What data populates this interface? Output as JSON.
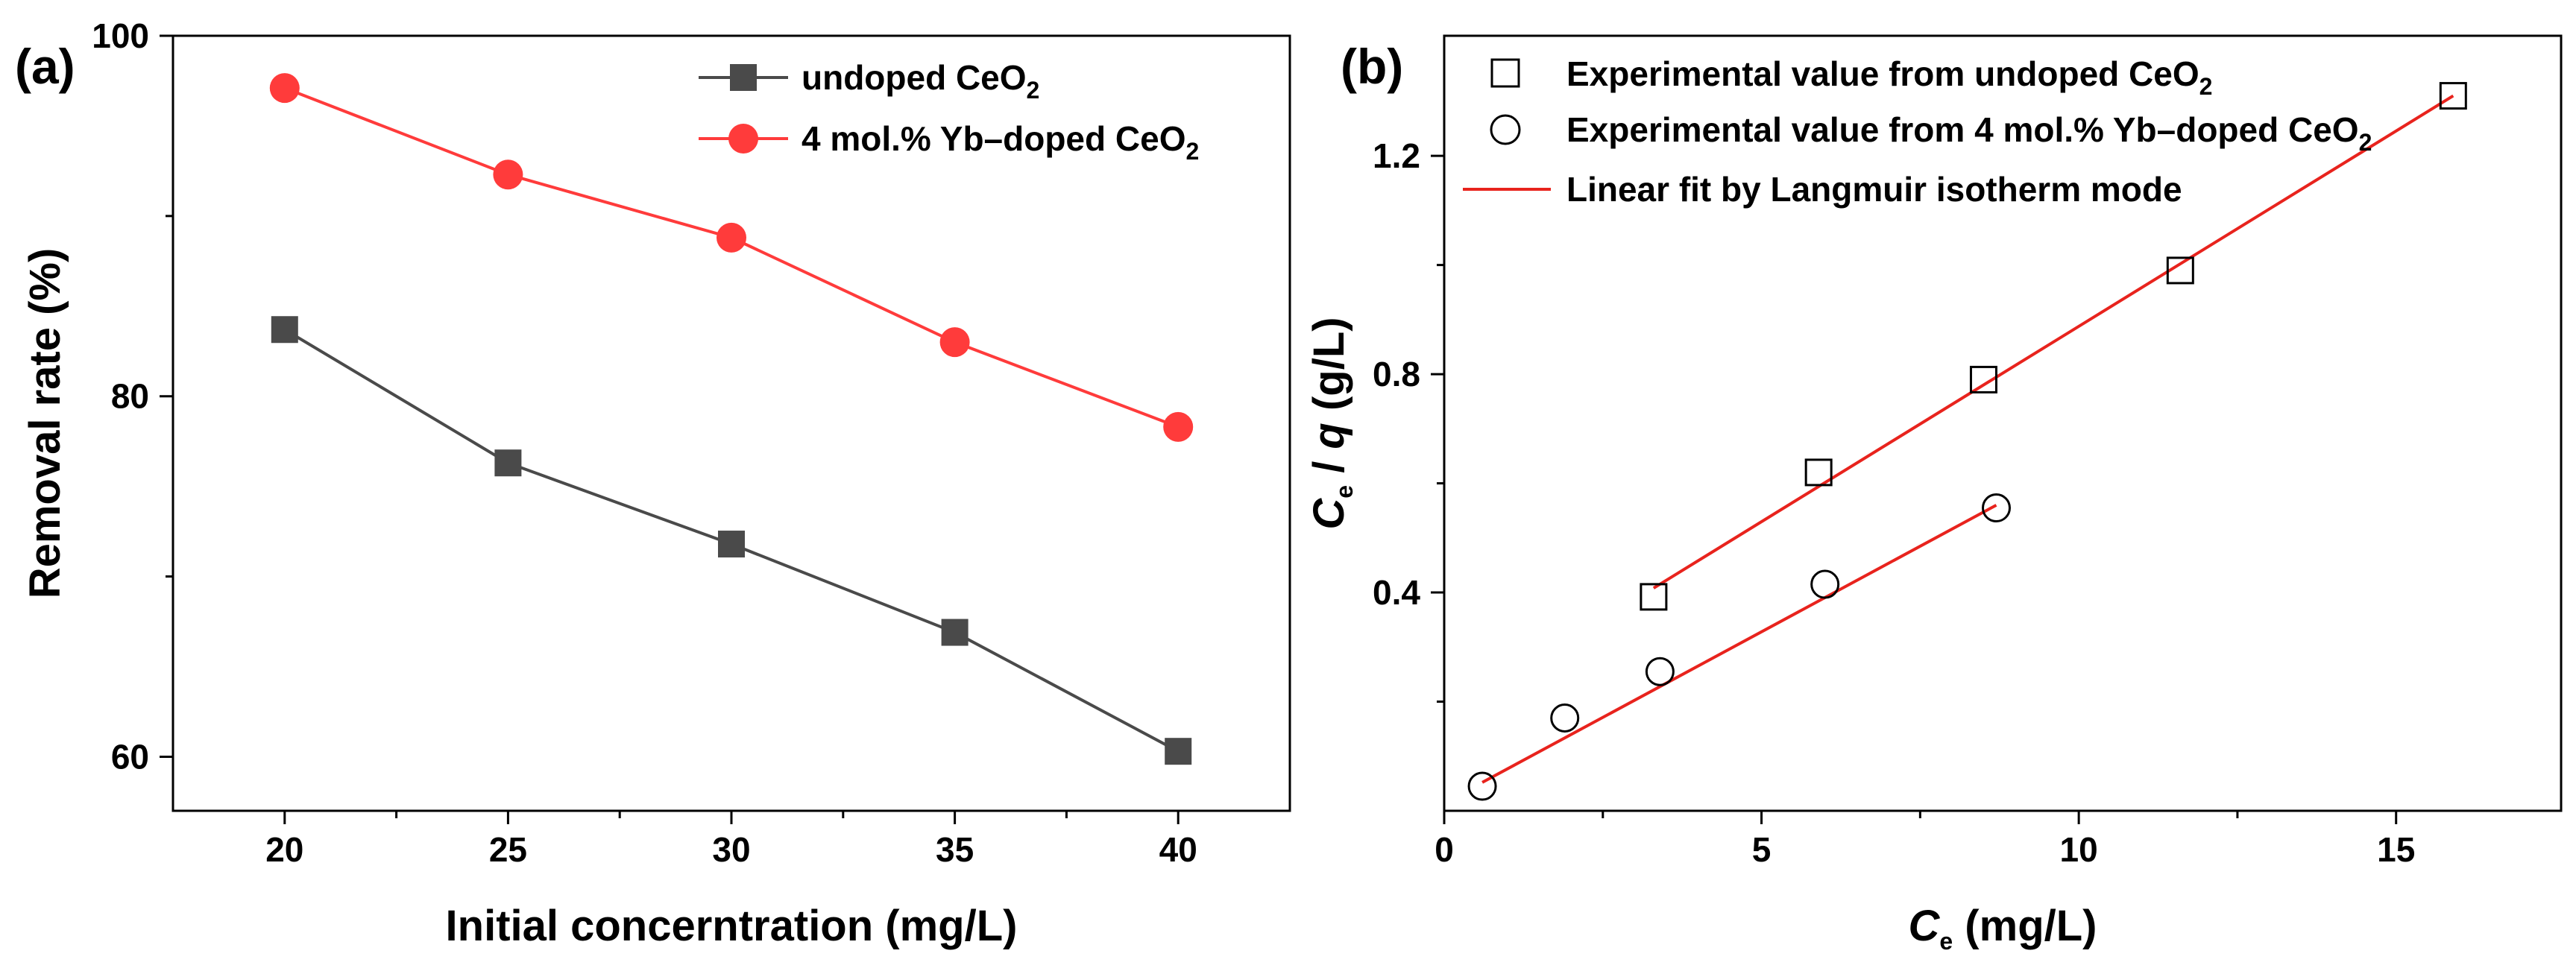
{
  "chart_data": [
    {
      "type": "line",
      "panel_label": "(a)",
      "xlabel": "Initial concerntration (mg/L)",
      "ylabel": "Removal rate (%)",
      "xlim": [
        17.5,
        42.5
      ],
      "ylim": [
        57,
        100
      ],
      "x": [
        20,
        25,
        30,
        35,
        40
      ],
      "x_ticks": [
        "20",
        "25",
        "30",
        "35",
        "40"
      ],
      "x_tick_values": [
        20,
        25,
        30,
        35,
        40
      ],
      "x_minor_values": [
        22.5,
        27.5,
        32.5,
        37.5
      ],
      "y_ticks": [
        "60",
        "80",
        "100"
      ],
      "y_tick_values": [
        60,
        80,
        100
      ],
      "y_minor_values": [
        70,
        90
      ],
      "legend_position": "top-right",
      "series": [
        {
          "name": "undoped CeO",
          "name_sub": "2",
          "marker": "square",
          "color": "#4a4a4a",
          "values": [
            83.7,
            76.3,
            71.8,
            66.9,
            60.3
          ]
        },
        {
          "name": "4 mol.% Yb–doped CeO",
          "name_sub": "2",
          "marker": "circle",
          "color": "#ff3b3b",
          "values": [
            97.1,
            92.3,
            88.8,
            83.0,
            78.3
          ]
        }
      ]
    },
    {
      "type": "scatter",
      "panel_label": "(b)",
      "xlabel_main": "C",
      "xlabel_sub": "e",
      "xlabel_rest": " (mg/L)",
      "ylabel_main": "C",
      "ylabel_sub": "e",
      "ylabel_slash": " / ",
      "ylabel_q": "q",
      "ylabel_rest": " (g/L)",
      "xlim": [
        0,
        17.6
      ],
      "ylim": [
        0,
        1.42
      ],
      "x_ticks": [
        "0",
        "5",
        "10",
        "15"
      ],
      "x_tick_values": [
        0,
        5,
        10,
        15
      ],
      "x_minor_values": [
        2.5,
        7.5,
        12.5
      ],
      "y_ticks": [
        "0.4",
        "0.8",
        "1.2"
      ],
      "y_tick_values": [
        0.4,
        0.8,
        1.2
      ],
      "y_minor_values": [
        0.2,
        0.6,
        1.0
      ],
      "legend_position": "top-left",
      "series": [
        {
          "name": "Experimental value from undoped CeO",
          "name_sub": "2",
          "marker": "open-square",
          "x": [
            3.3,
            5.9,
            8.5,
            11.6,
            15.9
          ],
          "y": [
            0.392,
            0.62,
            0.79,
            0.99,
            1.31
          ]
        },
        {
          "name": "Experimental value from 4 mol.% Yb–doped CeO",
          "name_sub": "2",
          "marker": "open-circle",
          "x": [
            0.6,
            1.9,
            3.4,
            6.0,
            8.7
          ],
          "y": [
            0.045,
            0.17,
            0.255,
            0.415,
            0.555
          ]
        }
      ],
      "fits": [
        {
          "name": "Linear fit by Langmuir isotherm mode",
          "color": "#e8231d",
          "x": [
            3.3,
            15.9
          ],
          "y": [
            0.408,
            1.31
          ]
        },
        {
          "x": [
            0.6,
            8.7
          ],
          "y": [
            0.052,
            0.56
          ]
        }
      ]
    }
  ]
}
